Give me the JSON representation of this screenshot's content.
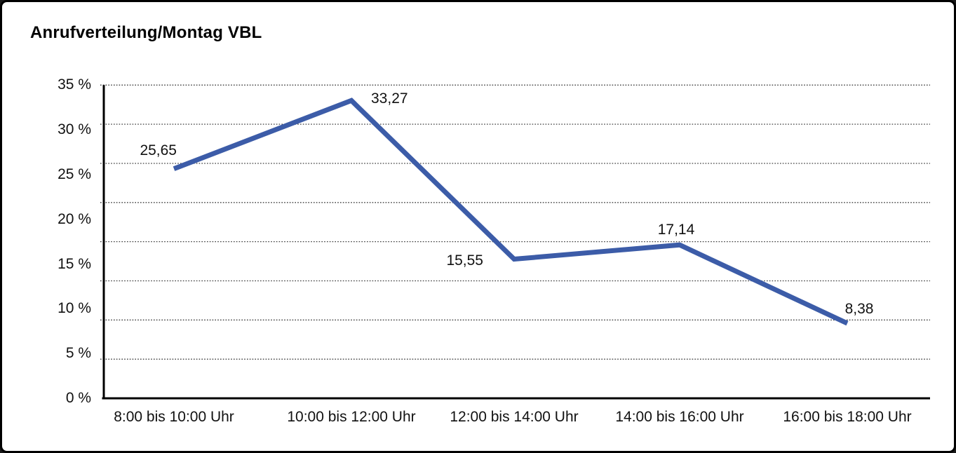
{
  "window": {
    "title": "Anrufverteilung/Montag VBL"
  },
  "chart_data": {
    "type": "line",
    "title": "Anrufverteilung/Montag VBL",
    "categories": [
      "8:00 bis 10:00 Uhr",
      "10:00 bis 12:00 Uhr",
      "12:00 bis 14:00 Uhr",
      "14:00 bis 16:00 Uhr",
      "16:00 bis 18:00 Uhr"
    ],
    "values": [
      25.65,
      33.27,
      15.55,
      17.14,
      8.38
    ],
    "value_labels": [
      "25,65",
      "33,27",
      "15,55",
      "17,14",
      "8,38"
    ],
    "y_tick_labels": [
      "35 %",
      "30 %",
      "25 %",
      "20 %",
      "15 %",
      "10 %",
      "5 %",
      "0 %"
    ],
    "ylim": [
      0,
      35
    ],
    "y_tick_step": 5,
    "xlabel": "",
    "ylabel": "",
    "grid": "horizontal-dotted",
    "legend": "none",
    "line_color": "#3C5CA8",
    "axis_color": "#000000",
    "gridline_color": "#3a3a3a",
    "text_color": "#111111"
  }
}
